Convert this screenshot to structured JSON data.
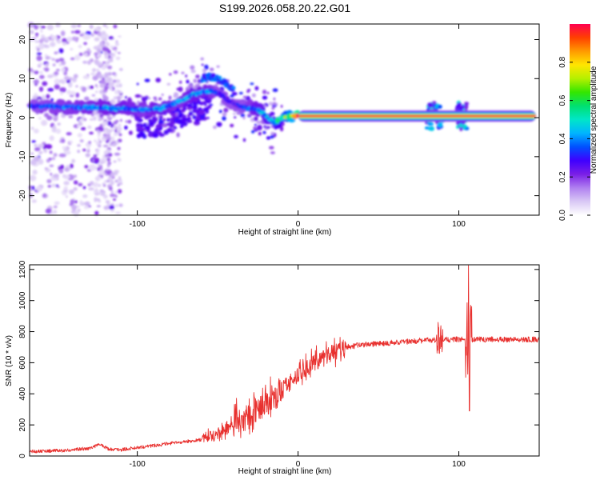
{
  "title": "S199.2026.058.20.22.G01",
  "chart_data": [
    {
      "type": "heatmap",
      "name": "spectrogram",
      "xlabel": "Height of straight line (km)",
      "ylabel": "Frequency (Hz)",
      "xlim": [
        -167,
        150
      ],
      "ylim": [
        -25,
        24
      ],
      "xticks": [
        -100,
        0,
        100
      ],
      "yticks": [
        -20,
        -10,
        0,
        10,
        20
      ],
      "colorbar": {
        "label": "Normalized spectral amplitude",
        "range": [
          0,
          1
        ],
        "ticks": [
          0.0,
          0.2,
          0.4,
          0.6,
          0.8
        ],
        "colors": [
          "#ffffff",
          "#d9c8f5",
          "#b080f0",
          "#7a1fe6",
          "#3f00ff",
          "#0050ff",
          "#00b4ff",
          "#00e6c8",
          "#00e070",
          "#33e600",
          "#b4f000",
          "#ffe600",
          "#ff9a00",
          "#ff4000",
          "#ff0050"
        ]
      },
      "ridge": {
        "x": [
          -167,
          -150,
          -130,
          -110,
          -95,
          -85,
          -75,
          -65,
          -55,
          -48,
          -42,
          -36,
          -30,
          -25,
          -20,
          -15,
          -10,
          -5,
          0,
          150
        ],
        "hz": [
          3,
          2.8,
          2.6,
          2.3,
          2.0,
          2.3,
          4.0,
          6.0,
          7.0,
          6.0,
          4.0,
          2.8,
          2.5,
          2.0,
          0.5,
          -1.2,
          0.0,
          0.3,
          0.4,
          0.4
        ],
        "amp": [
          0.32,
          0.35,
          0.38,
          0.4,
          0.36,
          0.42,
          0.36,
          0.42,
          0.38,
          0.3,
          0.26,
          0.3,
          0.36,
          0.42,
          0.45,
          0.48,
          0.55,
          0.7,
          1.0,
          1.0
        ]
      }
    },
    {
      "type": "line",
      "name": "snr",
      "xlabel": "Height of straight line (km)",
      "ylabel": "SNR (10 * v/v)",
      "xlim": [
        -167,
        150
      ],
      "ylim": [
        0,
        1230
      ],
      "xticks": [
        -100,
        0,
        100
      ],
      "yticks": [
        0,
        200,
        400,
        600,
        800,
        1000,
        1200
      ],
      "color": "#e8312f",
      "trend": {
        "x": [
          -167,
          -145,
          -130,
          -123,
          -118,
          -110,
          -100,
          -80,
          -60,
          -50,
          -40,
          -30,
          -20,
          -10,
          0,
          10,
          20,
          30,
          40,
          60,
          80,
          100,
          150
        ],
        "y": [
          30,
          35,
          50,
          75,
          45,
          40,
          55,
          80,
          105,
          145,
          200,
          260,
          340,
          420,
          520,
          600,
          660,
          700,
          715,
          730,
          745,
          750,
          750
        ]
      },
      "features": [
        {
          "x": 106,
          "y": 1225
        },
        {
          "x": 106.5,
          "y": 290
        },
        {
          "x": 88,
          "y": 660
        },
        {
          "x": 87,
          "y": 860
        }
      ]
    }
  ]
}
